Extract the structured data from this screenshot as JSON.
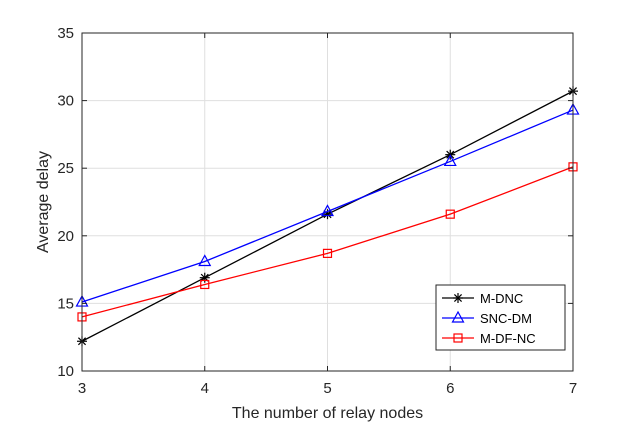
{
  "chart_data": {
    "type": "line",
    "title": "",
    "xlabel": "The number of relay nodes",
    "ylabel": "Average delay",
    "x": [
      3,
      4,
      5,
      6,
      7
    ],
    "xlim": [
      3,
      7
    ],
    "ylim": [
      10,
      35
    ],
    "xticks": [
      "3",
      "4",
      "5",
      "6",
      "7"
    ],
    "yticks": [
      "10",
      "15",
      "20",
      "25",
      "30",
      "35"
    ],
    "grid": true,
    "legend_position": "bottom-right",
    "series": [
      {
        "name": "M-DNC",
        "values": [
          12.2,
          16.9,
          21.6,
          26.0,
          30.7
        ],
        "color": "#000000",
        "marker": "asterisk"
      },
      {
        "name": "SNC-DM",
        "values": [
          15.1,
          18.1,
          21.8,
          25.5,
          29.3
        ],
        "color": "#0000ff",
        "marker": "triangle"
      },
      {
        "name": "M-DF-NC",
        "values": [
          14.0,
          16.4,
          18.7,
          21.6,
          25.1
        ],
        "color": "#ff0000",
        "marker": "square"
      }
    ]
  }
}
